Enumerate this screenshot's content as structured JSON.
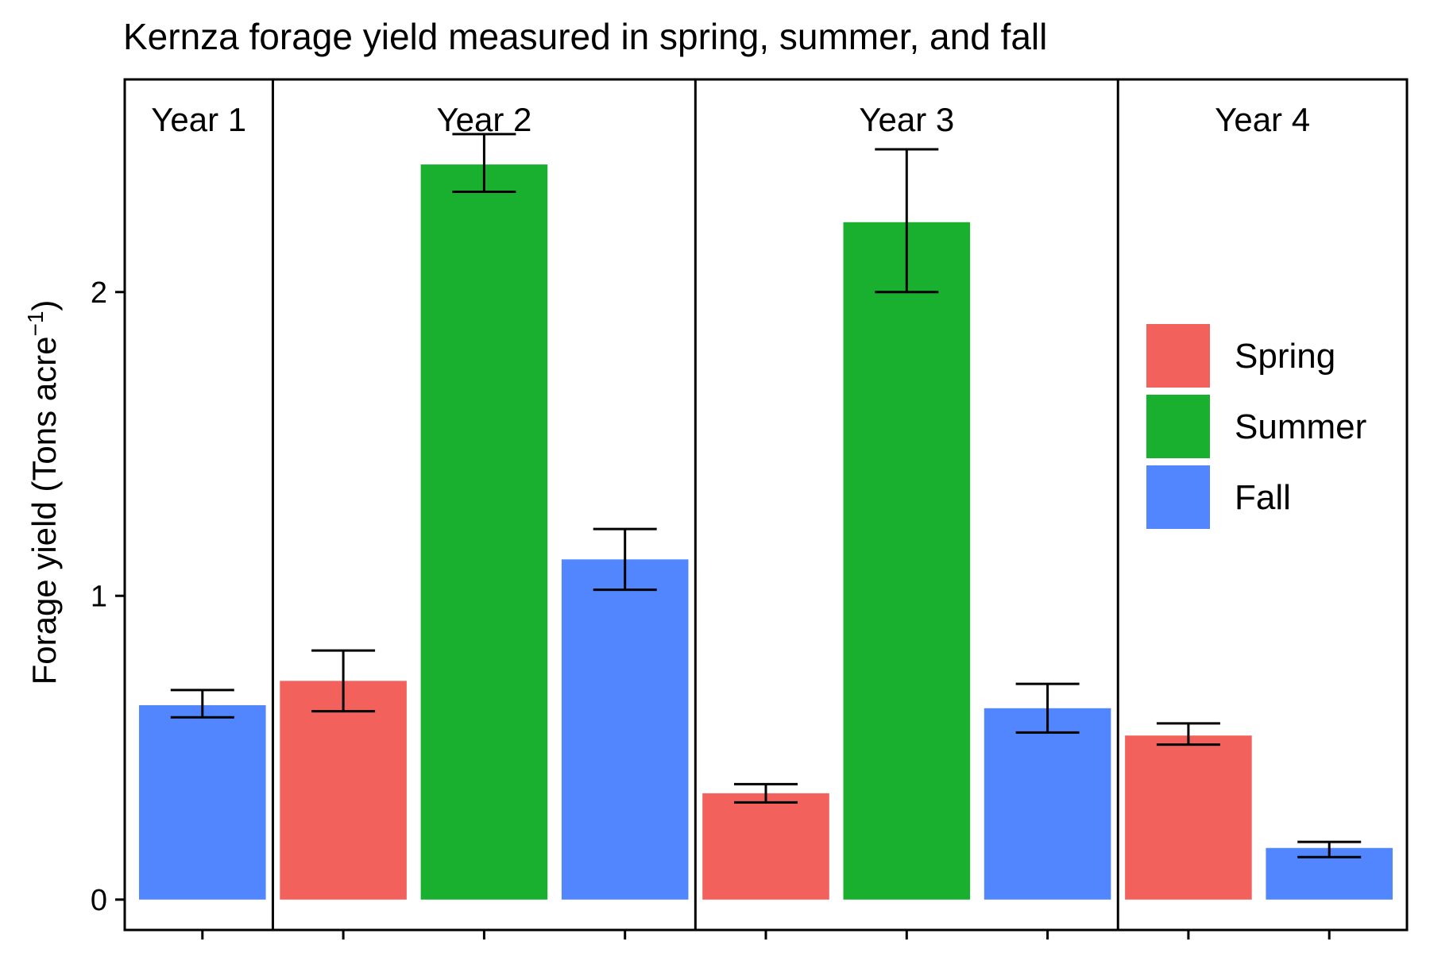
{
  "chart_data": {
    "type": "bar",
    "title": "Kernza forage yield measured in spring, summer, and fall",
    "ylabel": "Forage yield  (Tons acre",
    "ylabel_sup": "−1",
    "ylabel_close": ")",
    "ylim": [
      -0.1,
      2.7
    ],
    "yticks": [
      0,
      1,
      2
    ],
    "grid": false,
    "legend_position": "right",
    "legend": [
      {
        "name": "Spring",
        "color": "#F2615C"
      },
      {
        "name": "Summer",
        "color": "#1AB02F"
      },
      {
        "name": "Fall",
        "color": "#5186FF"
      }
    ],
    "facets": [
      {
        "label": "Year 1",
        "bars": [
          {
            "season": "Fall",
            "value": 0.64,
            "err_low": 0.6,
            "err_high": 0.69
          }
        ]
      },
      {
        "label": "Year 2",
        "bars": [
          {
            "season": "Spring",
            "value": 0.72,
            "err_low": 0.62,
            "err_high": 0.82
          },
          {
            "season": "Summer",
            "value": 2.42,
            "err_low": 2.33,
            "err_high": 2.52
          },
          {
            "season": "Fall",
            "value": 1.12,
            "err_low": 1.02,
            "err_high": 1.22
          }
        ]
      },
      {
        "label": "Year 3",
        "bars": [
          {
            "season": "Spring",
            "value": 0.35,
            "err_low": 0.32,
            "err_high": 0.38
          },
          {
            "season": "Summer",
            "value": 2.23,
            "err_low": 2.0,
            "err_high": 2.47
          },
          {
            "season": "Fall",
            "value": 0.63,
            "err_low": 0.55,
            "err_high": 0.71
          }
        ]
      },
      {
        "label": "Year 4",
        "bars": [
          {
            "season": "Spring",
            "value": 0.54,
            "err_low": 0.51,
            "err_high": 0.58
          },
          {
            "season": "Fall",
            "value": 0.17,
            "err_low": 0.14,
            "err_high": 0.19
          }
        ]
      }
    ]
  }
}
